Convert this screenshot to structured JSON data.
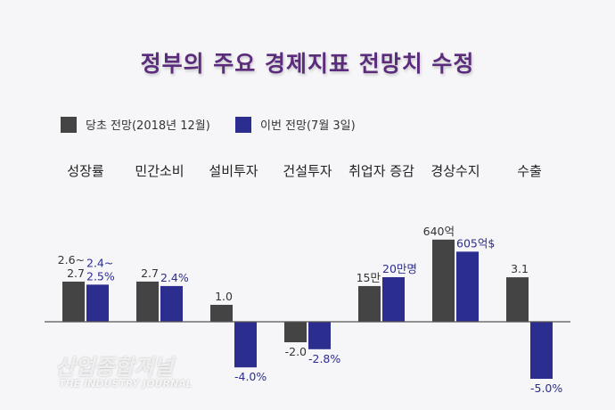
{
  "chart_data": {
    "type": "bar",
    "title": "정부의 주요 경제지표 전망치 수정",
    "categories": [
      "성장률",
      "민간소비",
      "설비투자",
      "건설투자",
      "취업자 증감",
      "경상수지",
      "수출"
    ],
    "series": [
      {
        "name": "당초 전망(2018년 12월)",
        "color": "#444444",
        "values": [
          2.65,
          2.7,
          1.0,
          -2.0,
          15,
          640,
          3.1
        ],
        "labels": [
          "2.6~\n2.7",
          "2.7",
          "1.0",
          "-2.0",
          "15만",
          "640억",
          "3.1"
        ]
      },
      {
        "name": "이번 전망(7월 3일)",
        "color": "#2b2e8f",
        "values": [
          2.45,
          2.4,
          -4.0,
          -2.8,
          20,
          605,
          -5.0
        ],
        "labels": [
          "2.4~\n2.5%",
          "2.4%",
          "-4.0%",
          "-2.8%",
          "20만명",
          "605억$",
          "-5.0%"
        ]
      }
    ],
    "legend": "top-left",
    "grid": false
  },
  "watermark": "산업종합저널 THE INDUSTRY JOURNAL"
}
